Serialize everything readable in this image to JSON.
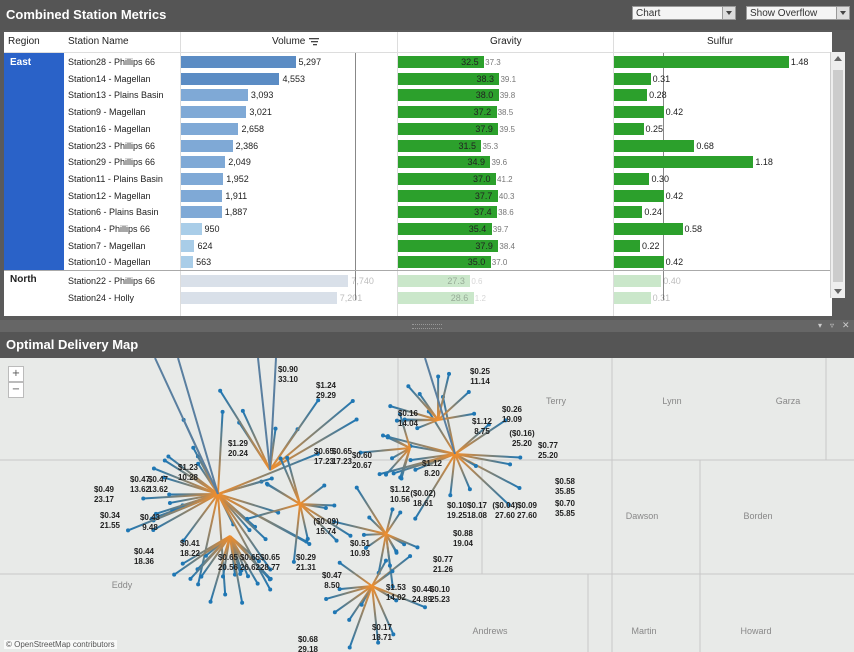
{
  "metrics": {
    "title": "Combined Station Metrics",
    "dropdown_chart": "Chart",
    "dropdown_overflow": "Show Overflow",
    "col_region": "Region",
    "col_station": "Station Name",
    "col_volume": "Volume",
    "col_gravity": "Gravity",
    "col_sulfur": "Sulfur",
    "regions": [
      {
        "name": "East",
        "rows": 13
      },
      {
        "name": "North",
        "rows": 2
      }
    ],
    "rows": [
      {
        "station": "Station28 - Phillips 66",
        "volume": 5297,
        "volume_label": "5,297",
        "gravity": 32.5,
        "gravity_label": "32.5",
        "gravity_ref": "37.3",
        "sulfur": 1.48,
        "sulfur_label": "1.48"
      },
      {
        "station": "Station14 - Magellan",
        "volume": 4553,
        "volume_label": "4,553",
        "gravity": 38.3,
        "gravity_label": "38.3",
        "gravity_ref": "39.1",
        "sulfur": 0.31,
        "sulfur_label": "0.31"
      },
      {
        "station": "Station13 - Plains Basin",
        "volume": 3093,
        "volume_label": "3,093",
        "gravity": 38.0,
        "gravity_label": "38.0",
        "gravity_ref": "39.8",
        "sulfur": 0.28,
        "sulfur_label": "0.28"
      },
      {
        "station": "Station9 - Magellan",
        "volume": 3021,
        "volume_label": "3,021",
        "gravity": 37.2,
        "gravity_label": "37.2",
        "gravity_ref": "38.5",
        "sulfur": 0.42,
        "sulfur_label": "0.42"
      },
      {
        "station": "Station16 - Magellan",
        "volume": 2658,
        "volume_label": "2,658",
        "gravity": 37.9,
        "gravity_label": "37.9",
        "gravity_ref": "39.5",
        "sulfur": 0.25,
        "sulfur_label": "0.25"
      },
      {
        "station": "Station23 - Phillips 66",
        "volume": 2386,
        "volume_label": "2,386",
        "gravity": 31.5,
        "gravity_label": "31.5",
        "gravity_ref": "35.3",
        "sulfur": 0.68,
        "sulfur_label": "0.68"
      },
      {
        "station": "Station29 - Phillips 66",
        "volume": 2049,
        "volume_label": "2,049",
        "gravity": 34.9,
        "gravity_label": "34.9",
        "gravity_ref": "39.6",
        "sulfur": 1.18,
        "sulfur_label": "1.18"
      },
      {
        "station": "Station11 - Plains Basin",
        "volume": 1952,
        "volume_label": "1,952",
        "gravity": 37.0,
        "gravity_label": "37.0",
        "gravity_ref": "41.2",
        "sulfur": 0.3,
        "sulfur_label": "0.30"
      },
      {
        "station": "Station12 - Magellan",
        "volume": 1911,
        "volume_label": "1,911",
        "gravity": 37.7,
        "gravity_label": "37.7",
        "gravity_ref": "40.3",
        "sulfur": 0.42,
        "sulfur_label": "0.42"
      },
      {
        "station": "Station6 - Plains Basin",
        "volume": 1887,
        "volume_label": "1,887",
        "gravity": 37.4,
        "gravity_label": "37.4",
        "gravity_ref": "38.6",
        "sulfur": 0.24,
        "sulfur_label": "0.24"
      },
      {
        "station": "Station4 - Phillips 66",
        "volume": 950,
        "volume_label": "950",
        "gravity": 35.4,
        "gravity_label": "35.4",
        "gravity_ref": "39.7",
        "sulfur": 0.58,
        "sulfur_label": "0.58"
      },
      {
        "station": "Station7 - Magellan",
        "volume": 624,
        "volume_label": "624",
        "gravity": 37.9,
        "gravity_label": "37.9",
        "gravity_ref": "38.4",
        "sulfur": 0.22,
        "sulfur_label": "0.22"
      },
      {
        "station": "Station10 - Magellan",
        "volume": 563,
        "volume_label": "563",
        "gravity": 35.0,
        "gravity_label": "35.0",
        "gravity_ref": "37.0",
        "sulfur": 0.42,
        "sulfur_label": "0.42"
      },
      {
        "station": "Station22 - Phillips 66",
        "volume": 7740,
        "volume_label": "7,740",
        "gravity": 27.3,
        "gravity_label": "27.3",
        "gravity_ref": "0.6",
        "sulfur": 0.4,
        "sulfur_label": "0.40",
        "faded": true
      },
      {
        "station": "Station24 - Holly",
        "volume": 7201,
        "volume_label": "7,201",
        "gravity": 28.6,
        "gravity_label": "28.6",
        "gravity_ref": "1.2",
        "sulfur": 0.31,
        "sulfur_label": "0.31",
        "faded": true
      }
    ],
    "colors": {
      "volume_dark": "#5b8cc4",
      "volume_light": "#a9cde8",
      "gravity": "#2ca02c",
      "sulfur": "#2ca02c",
      "region_east": "#2a62c8"
    }
  },
  "map": {
    "title": "Optimal Delivery Map",
    "attribution": "© OpenStreetMap contributors",
    "counties": [
      "Terry",
      "Lynn",
      "Garza",
      "Dawson",
      "Borden",
      "Eddy",
      "Andrews",
      "Martin",
      "Howard"
    ],
    "prices": [
      [
        "$0.90",
        "33.10"
      ],
      [
        "$1.24",
        "29.29"
      ],
      [
        "$0.25",
        "11.14"
      ],
      [
        "$0.26",
        "19.09"
      ],
      [
        "$0.16",
        "14.04"
      ],
      [
        "$1.12",
        "8.75"
      ],
      [
        "($0.16)",
        "25.20"
      ],
      [
        "$0.77",
        "25.20"
      ],
      [
        "$1.29",
        "20.24"
      ],
      [
        "$0.65",
        "17.23"
      ],
      [
        "$0.65",
        "17.23"
      ],
      [
        "$0.60",
        "20.67"
      ],
      [
        "$1.12",
        "8.20"
      ],
      [
        "$0.58",
        "35.85"
      ],
      [
        "$1.23",
        "10.28"
      ],
      [
        "$0.47",
        "13.62"
      ],
      [
        "$0.47",
        "13.62"
      ],
      [
        "$0.49",
        "23.17"
      ],
      [
        "$1.12",
        "10.56"
      ],
      [
        "($0.02)",
        "18.61"
      ],
      [
        "$0.70",
        "35.85"
      ],
      [
        "$0.10",
        "19.25"
      ],
      [
        "$0.17",
        "18.08"
      ],
      [
        "($0.04)",
        "27.60"
      ],
      [
        "$0.09",
        "27.60"
      ],
      [
        "$0.34",
        "21.55"
      ],
      [
        "$0.43",
        "9.48"
      ],
      [
        "($0.09)",
        "15.74"
      ],
      [
        "$0.41",
        "18.22"
      ],
      [
        "$0.88",
        "19.04"
      ],
      [
        "$0.44",
        "18.36"
      ],
      [
        "$0.51",
        "10.93"
      ],
      [
        "$0.65",
        "20.56"
      ],
      [
        "$0.65",
        "26.62"
      ],
      [
        "$0.65",
        "28.77"
      ],
      [
        "$0.29",
        "21.31"
      ],
      [
        "$0.77",
        "21.26"
      ],
      [
        "$0.47",
        "8.50"
      ],
      [
        "$1.53",
        "14.02"
      ],
      [
        "$0.44",
        "24.89"
      ],
      [
        "$0.10",
        "25.23"
      ],
      [
        "$0.17",
        "18.71"
      ],
      [
        "$0.68",
        "29.18"
      ]
    ],
    "colors": {
      "orange": "#f28e2b",
      "blue": "#1f77b4",
      "land": "#e8eae8"
    }
  }
}
